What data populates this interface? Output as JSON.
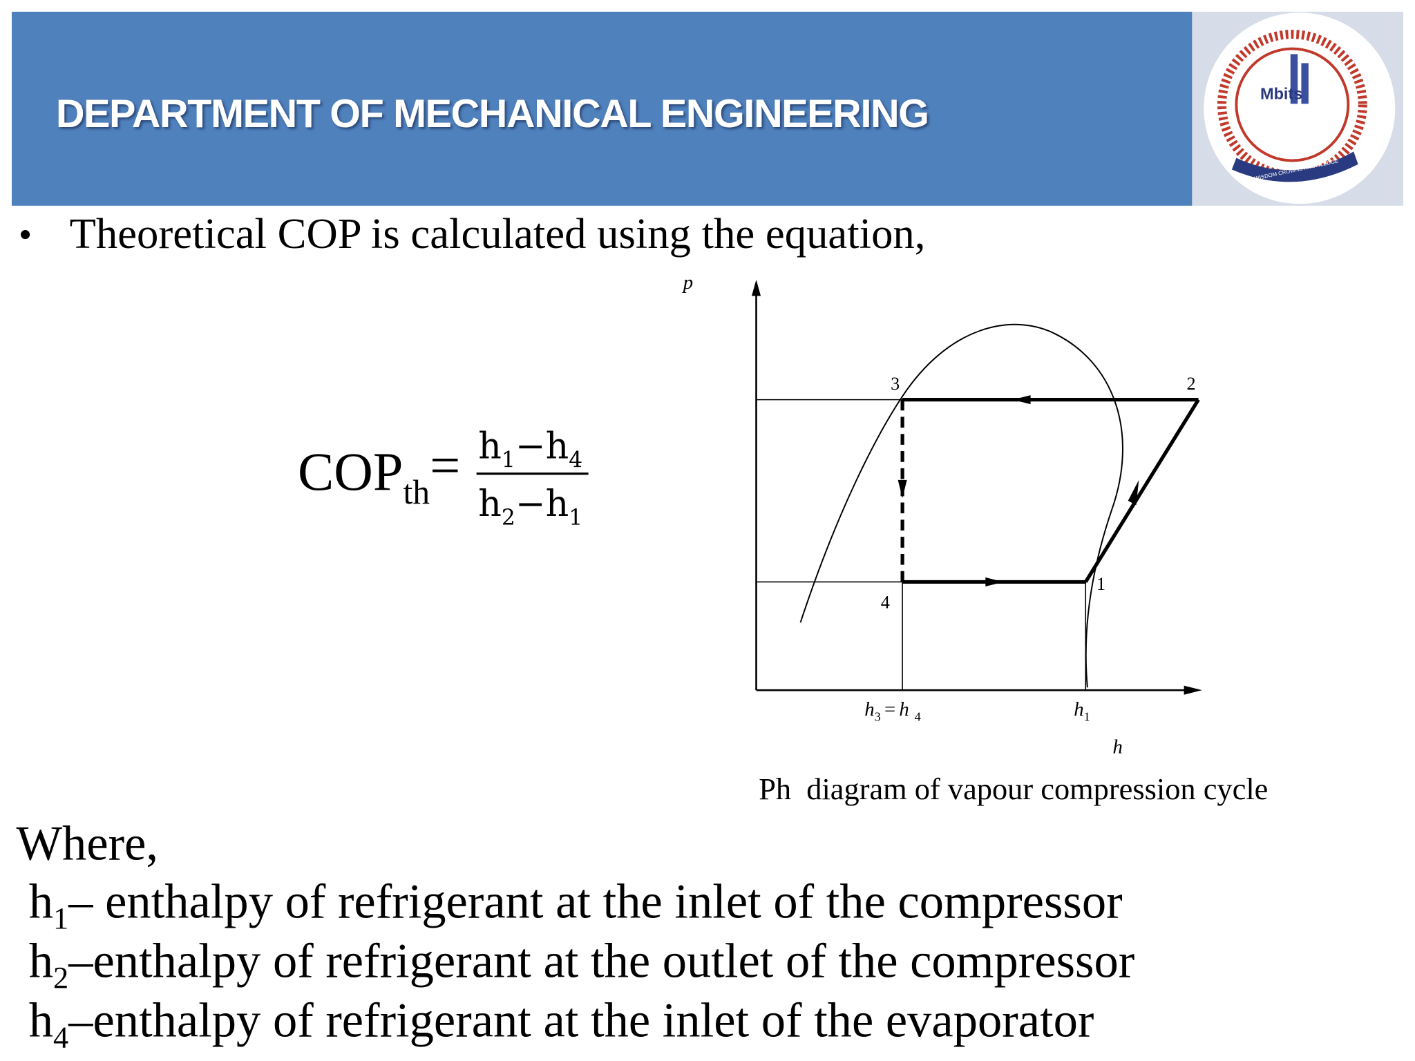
{
  "header": {
    "title": "DEPARTMENT OF MECHANICAL ENGINEERING",
    "logo_text": "Mbits",
    "logo_motto": "WISDOM CROWNS KNOWLEDGE"
  },
  "bullet": "Theoretical COP is calculated using the equation,",
  "formula": {
    "lhs": "COP",
    "lhs_sub": "th",
    "equals": "=",
    "numerator": {
      "a": "h",
      "a_sub": "1",
      "op": "−",
      "b": "h",
      "b_sub": "4"
    },
    "denominator": {
      "a": "h",
      "a_sub": "2",
      "op": "−",
      "b": "h",
      "b_sub": "1"
    }
  },
  "diagram": {
    "y_axis": "p",
    "x_axis": "h",
    "points": [
      "1",
      "2",
      "3",
      "4"
    ],
    "tick_left": {
      "a": "h",
      "a_sub": "3",
      "op": "=",
      "b": "h",
      "b_sub": "4"
    },
    "tick_right": {
      "a": "h",
      "a_sub": "1"
    },
    "caption": "Ph  diagram of vapour compression cycle"
  },
  "where": "Where,",
  "definitions": [
    {
      "symbol": "h",
      "sub": "1",
      "text": "– enthalpy of refrigerant at the inlet of the compressor"
    },
    {
      "symbol": "h",
      "sub": "2",
      "text": "–enthalpy of refrigerant at the outlet of the compressor"
    },
    {
      "symbol": "h",
      "sub": "4",
      "text": "–enthalpy of refrigerant at the inlet of the evaporator"
    }
  ]
}
